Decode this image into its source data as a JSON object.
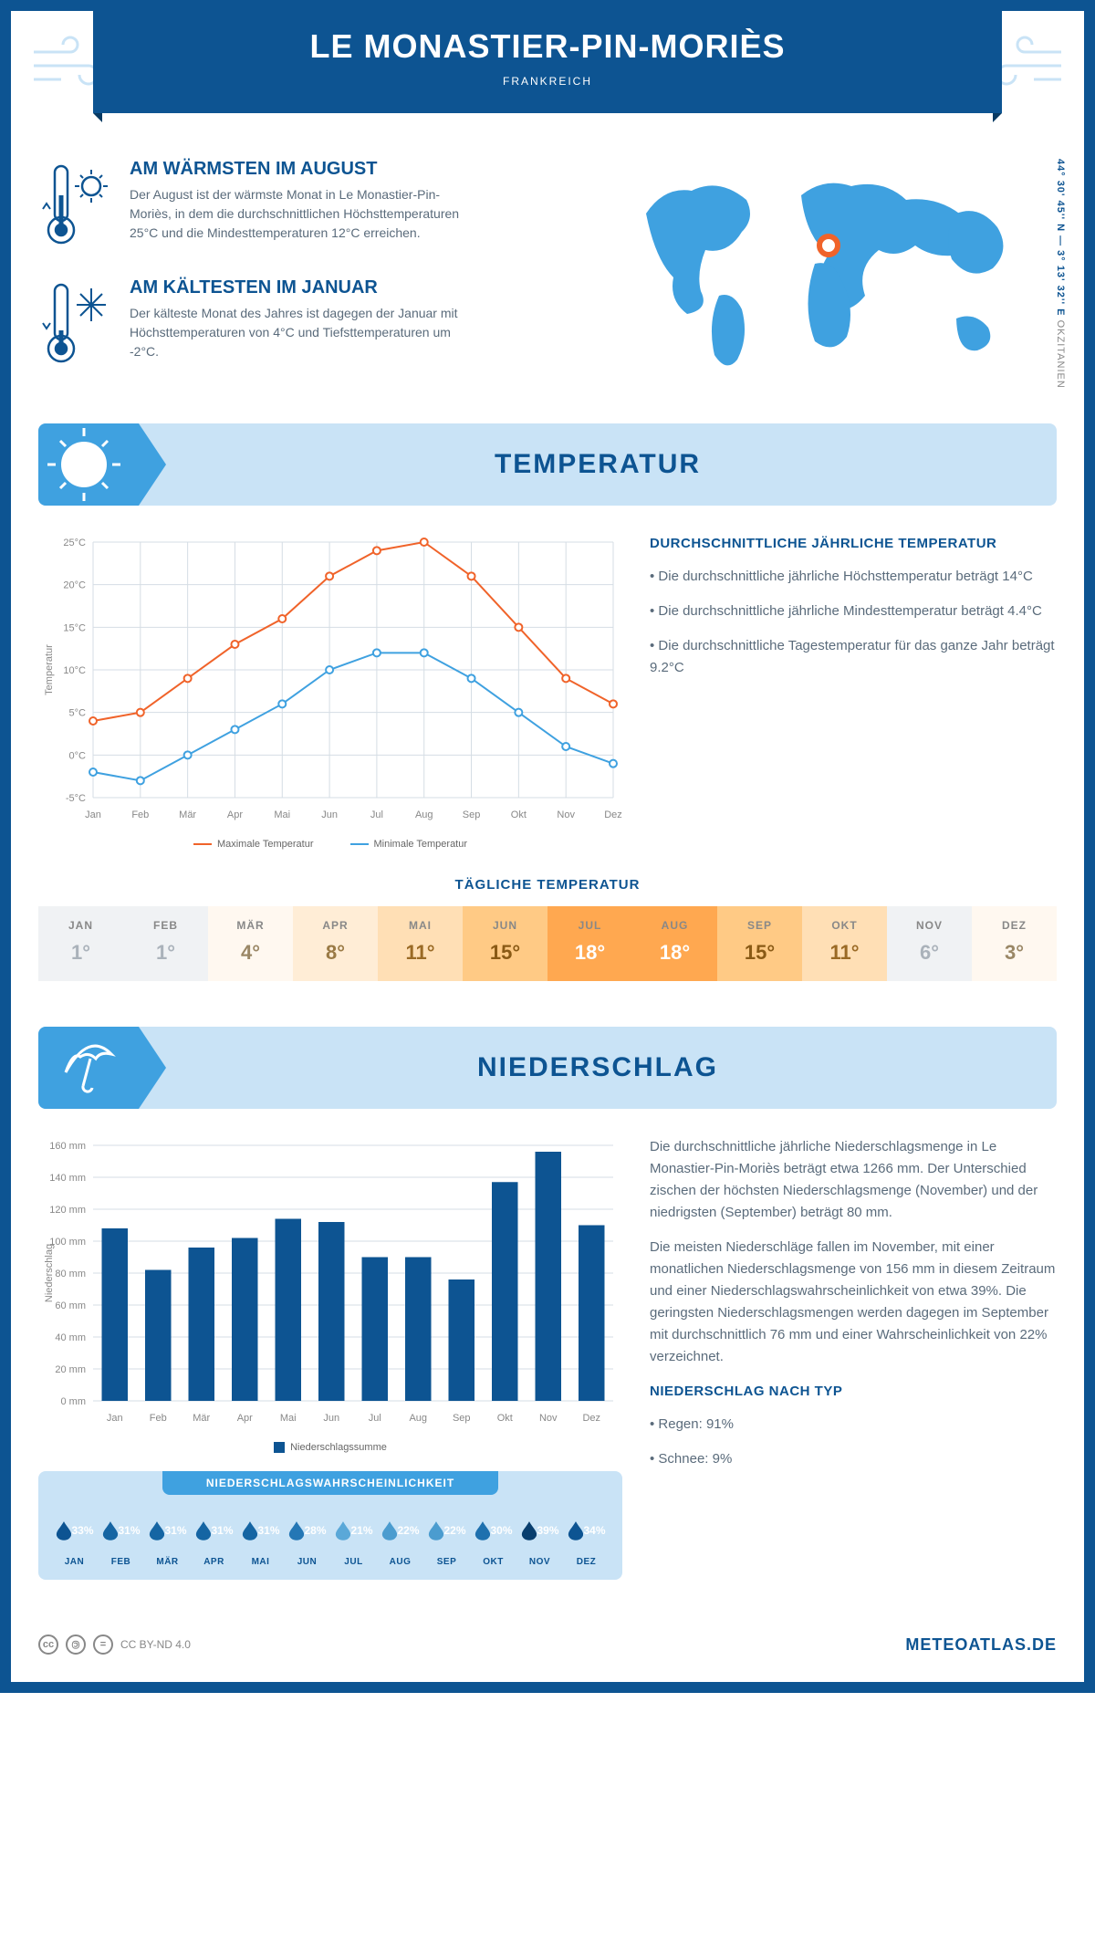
{
  "header": {
    "title": "LE MONASTIER-PIN-MORIÈS",
    "country": "FRANKREICH",
    "coords": "44° 30' 45'' N — 3° 13' 32'' E",
    "region": "OKZITANIEN"
  },
  "warmest": {
    "title": "AM WÄRMSTEN IM AUGUST",
    "text": "Der August ist der wärmste Monat in Le Monastier-Pin-Moriès, in dem die durchschnittlichen Höchsttemperaturen 25°C und die Mindesttemperaturen 12°C erreichen."
  },
  "coldest": {
    "title": "AM KÄLTESTEN IM JANUAR",
    "text": "Der kälteste Monat des Jahres ist dagegen der Januar mit Höchsttemperaturen von 4°C und Tiefsttemperaturen um -2°C."
  },
  "tempSection": {
    "bannerTitle": "TEMPERATUR",
    "sideTitle": "DURCHSCHNITTLICHE JÄHRLICHE TEMPERATUR",
    "b1": "• Die durchschnittliche jährliche Höchsttemperatur beträgt 14°C",
    "b2": "• Die durchschnittliche jährliche Mindesttemperatur beträgt 4.4°C",
    "b3": "• Die durchschnittliche Tagestemperatur für das ganze Jahr beträgt 9.2°C",
    "dailyTitle": "TÄGLICHE TEMPERATUR",
    "legendMax": "Maximale Temperatur",
    "legendMin": "Minimale Temperatur",
    "chart": {
      "months": [
        "Jan",
        "Feb",
        "Mär",
        "Apr",
        "Mai",
        "Jun",
        "Jul",
        "Aug",
        "Sep",
        "Okt",
        "Nov",
        "Dez"
      ],
      "max": [
        4,
        5,
        9,
        13,
        16,
        21,
        24,
        25,
        21,
        15,
        9,
        6
      ],
      "min": [
        -2,
        -3,
        0,
        3,
        6,
        10,
        12,
        12,
        9,
        5,
        1,
        -1
      ],
      "ylim": [
        -5,
        25
      ],
      "ytick_step": 5,
      "ylabel": "Temperatur",
      "max_color": "#f0632a",
      "min_color": "#3fa1e0",
      "grid_color": "#d5dde4",
      "bg": "#ffffff",
      "marker": "circle",
      "line_width": 2,
      "marker_size": 4
    },
    "dailyTemps": {
      "labels": [
        "JAN",
        "FEB",
        "MÄR",
        "APR",
        "MAI",
        "JUN",
        "JUL",
        "AUG",
        "SEP",
        "OKT",
        "NOV",
        "DEZ"
      ],
      "values": [
        "1°",
        "1°",
        "4°",
        "8°",
        "11°",
        "15°",
        "18°",
        "18°",
        "15°",
        "11°",
        "6°",
        "3°"
      ],
      "bg_colors": [
        "#f0f2f4",
        "#f0f2f4",
        "#fff8f0",
        "#ffedd6",
        "#ffdfb5",
        "#ffca85",
        "#ffa850",
        "#ffa850",
        "#ffca85",
        "#ffdfb5",
        "#f0f2f4",
        "#fff8f0"
      ],
      "text_colors": [
        "#aab2ba",
        "#aab2ba",
        "#9a8766",
        "#9a7a45",
        "#9a6a25",
        "#8a5a15",
        "#ffffff",
        "#ffffff",
        "#8a5a15",
        "#9a6a25",
        "#aab2ba",
        "#9a8766"
      ]
    }
  },
  "precipSection": {
    "bannerTitle": "NIEDERSCHLAG",
    "p1": "Die durchschnittliche jährliche Niederschlagsmenge in Le Monastier-Pin-Moriès beträgt etwa 1266 mm. Der Unterschied zischen der höchsten Niederschlagsmenge (November) und der niedrigsten (September) beträgt 80 mm.",
    "p2": "Die meisten Niederschläge fallen im November, mit einer monatlichen Niederschlagsmenge von 156 mm in diesem Zeitraum und einer Niederschlagswahrscheinlichkeit von etwa 39%. Die geringsten Niederschlagsmengen werden dagegen im September mit durchschnittlich 76 mm und einer Wahrscheinlichkeit von 22% verzeichnet.",
    "typeTitle": "NIEDERSCHLAG NACH TYP",
    "typeRain": "• Regen: 91%",
    "typeSnow": "• Schnee: 9%",
    "legendBar": "Niederschlagssumme",
    "chart": {
      "months": [
        "Jan",
        "Feb",
        "Mär",
        "Apr",
        "Mai",
        "Jun",
        "Jul",
        "Aug",
        "Sep",
        "Okt",
        "Nov",
        "Dez"
      ],
      "values": [
        108,
        82,
        96,
        102,
        114,
        112,
        90,
        90,
        76,
        137,
        156,
        110
      ],
      "ylim": [
        0,
        160
      ],
      "ytick_step": 20,
      "ylabel": "Niederschlag",
      "bar_color": "#0d5492",
      "grid_color": "#d5dde4",
      "bar_width": 0.6
    },
    "probTitle": "NIEDERSCHLAGSWAHRSCHEINLICHKEIT",
    "prob": {
      "labels": [
        "JAN",
        "FEB",
        "MÄR",
        "APR",
        "MAI",
        "JUN",
        "JUL",
        "AUG",
        "SEP",
        "OKT",
        "NOV",
        "DEZ"
      ],
      "values": [
        "33%",
        "31%",
        "31%",
        "31%",
        "31%",
        "28%",
        "21%",
        "22%",
        "22%",
        "30%",
        "39%",
        "34%"
      ],
      "colors": [
        "#0d5492",
        "#1565a3",
        "#1565a3",
        "#1565a3",
        "#1565a3",
        "#2477b5",
        "#5aa8d8",
        "#4b9ccf",
        "#4b9ccf",
        "#1e70ae",
        "#083e6e",
        "#0d5492"
      ]
    }
  },
  "footer": {
    "license": "CC BY-ND 4.0",
    "brand": "METEOATLAS.DE"
  }
}
